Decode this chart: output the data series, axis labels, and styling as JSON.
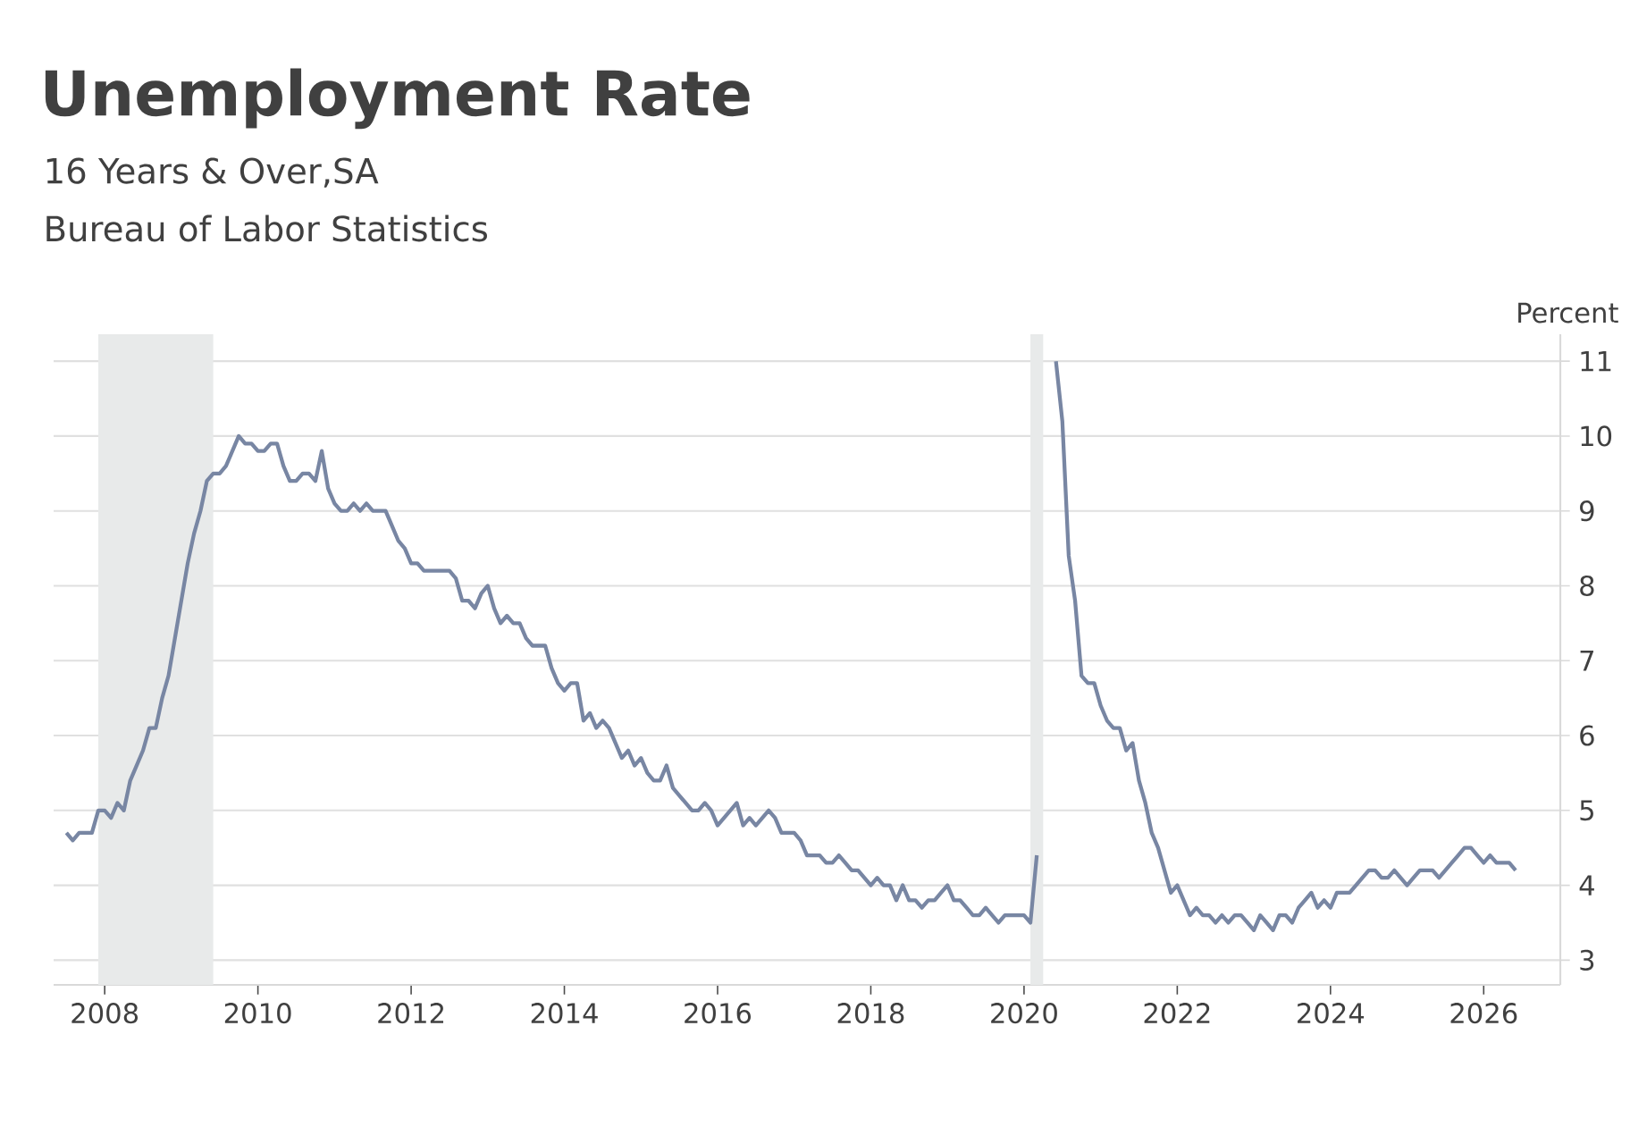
{
  "chart_data": {
    "type": "line",
    "title": "Unemployment Rate",
    "subtitle": "16 Years & Over,SA",
    "annotations": [
      "Bureau of Labor Statistics"
    ],
    "ylabel": "Percent",
    "x": [
      "2007-07",
      "2007-08",
      "2007-09",
      "2007-10",
      "2007-11",
      "2007-12",
      "2008-01",
      "2008-02",
      "2008-03",
      "2008-04",
      "2008-05",
      "2008-06",
      "2008-07",
      "2008-08",
      "2008-09",
      "2008-10",
      "2008-11",
      "2008-12",
      "2009-01",
      "2009-02",
      "2009-03",
      "2009-04",
      "2009-05",
      "2009-06",
      "2009-07",
      "2009-08",
      "2009-09",
      "2009-10",
      "2009-11",
      "2009-12",
      "2010-01",
      "2010-02",
      "2010-03",
      "2010-04",
      "2010-05",
      "2010-06",
      "2010-07",
      "2010-08",
      "2010-09",
      "2010-10",
      "2010-11",
      "2010-12",
      "2011-01",
      "2011-02",
      "2011-03",
      "2011-04",
      "2011-05",
      "2011-06",
      "2011-07",
      "2011-08",
      "2011-09",
      "2011-10",
      "2011-11",
      "2011-12",
      "2012-01",
      "2012-02",
      "2012-03",
      "2012-04",
      "2012-05",
      "2012-06",
      "2012-07",
      "2012-08",
      "2012-09",
      "2012-10",
      "2012-11",
      "2012-12",
      "2013-01",
      "2013-02",
      "2013-03",
      "2013-04",
      "2013-05",
      "2013-06",
      "2013-07",
      "2013-08",
      "2013-09",
      "2013-10",
      "2013-11",
      "2013-12",
      "2014-01",
      "2014-02",
      "2014-03",
      "2014-04",
      "2014-05",
      "2014-06",
      "2014-07",
      "2014-08",
      "2014-09",
      "2014-10",
      "2014-11",
      "2014-12",
      "2015-01",
      "2015-02",
      "2015-03",
      "2015-04",
      "2015-05",
      "2015-06",
      "2015-07",
      "2015-08",
      "2015-09",
      "2015-10",
      "2015-11",
      "2015-12",
      "2016-01",
      "2016-02",
      "2016-03",
      "2016-04",
      "2016-05",
      "2016-06",
      "2016-07",
      "2016-08",
      "2016-09",
      "2016-10",
      "2016-11",
      "2016-12",
      "2017-01",
      "2017-02",
      "2017-03",
      "2017-04",
      "2017-05",
      "2017-06",
      "2017-07",
      "2017-08",
      "2017-09",
      "2017-10",
      "2017-11",
      "2017-12",
      "2018-01",
      "2018-02",
      "2018-03",
      "2018-04",
      "2018-05",
      "2018-06",
      "2018-07",
      "2018-08",
      "2018-09",
      "2018-10",
      "2018-11",
      "2018-12",
      "2019-01",
      "2019-02",
      "2019-03",
      "2019-04",
      "2019-05",
      "2019-06",
      "2019-07",
      "2019-08",
      "2019-09",
      "2019-10",
      "2019-11",
      "2019-12",
      "2020-01",
      "2020-02",
      "2020-03",
      "2020-04",
      "2020-05",
      "2020-06",
      "2020-07",
      "2020-08",
      "2020-09",
      "2020-10",
      "2020-11",
      "2020-12",
      "2021-01",
      "2021-02",
      "2021-03",
      "2021-04",
      "2021-05",
      "2021-06",
      "2021-07",
      "2021-08",
      "2021-09",
      "2021-10",
      "2021-11",
      "2021-12",
      "2022-01",
      "2022-02",
      "2022-03",
      "2022-04",
      "2022-05",
      "2022-06",
      "2022-07",
      "2022-08",
      "2022-09",
      "2022-10",
      "2022-11",
      "2022-12",
      "2023-01",
      "2023-02",
      "2023-03",
      "2023-04",
      "2023-05",
      "2023-06",
      "2023-07",
      "2023-08",
      "2023-09",
      "2023-10",
      "2023-11",
      "2023-12",
      "2024-01",
      "2024-02",
      "2024-03",
      "2024-04",
      "2024-05",
      "2024-06",
      "2024-07",
      "2024-08",
      "2024-09",
      "2024-10",
      "2024-11",
      "2024-12",
      "2025-01",
      "2025-02",
      "2025-03",
      "2025-04",
      "2025-05",
      "2025-06",
      "2025-07",
      "2025-08",
      "2025-09",
      "2025-10",
      "2025-11",
      "2025-12",
      "2026-01",
      "2026-02",
      "2026-03",
      "2026-04",
      "2026-05",
      "2026-06"
    ],
    "series": [
      {
        "color": "#7886a3",
        "values": [
          4.7,
          4.6,
          4.7,
          4.7,
          4.7,
          5.0,
          5.0,
          4.9,
          5.1,
          5.0,
          5.4,
          5.6,
          5.8,
          6.1,
          6.1,
          6.5,
          6.8,
          7.3,
          7.8,
          8.3,
          8.7,
          9.0,
          9.4,
          9.5,
          9.5,
          9.6,
          9.8,
          10.0,
          9.9,
          9.9,
          9.8,
          9.8,
          9.9,
          9.9,
          9.6,
          9.4,
          9.4,
          9.5,
          9.5,
          9.4,
          9.8,
          9.3,
          9.1,
          9.0,
          9.0,
          9.1,
          9.0,
          9.1,
          9.0,
          9.0,
          9.0,
          8.8,
          8.6,
          8.5,
          8.3,
          8.3,
          8.2,
          8.2,
          8.2,
          8.2,
          8.2,
          8.1,
          7.8,
          7.8,
          7.7,
          7.9,
          8.0,
          7.7,
          7.5,
          7.6,
          7.5,
          7.5,
          7.3,
          7.2,
          7.2,
          7.2,
          6.9,
          6.7,
          6.6,
          6.7,
          6.7,
          6.2,
          6.3,
          6.1,
          6.2,
          6.1,
          5.9,
          5.7,
          5.8,
          5.6,
          5.7,
          5.5,
          5.4,
          5.4,
          5.6,
          5.3,
          5.2,
          5.1,
          5.0,
          5.0,
          5.1,
          5.0,
          4.8,
          4.9,
          5.0,
          5.1,
          4.8,
          4.9,
          4.8,
          4.9,
          5.0,
          4.9,
          4.7,
          4.7,
          4.7,
          4.6,
          4.4,
          4.4,
          4.4,
          4.3,
          4.3,
          4.4,
          4.3,
          4.2,
          4.2,
          4.1,
          4.0,
          4.1,
          4.0,
          4.0,
          3.8,
          4.0,
          3.8,
          3.8,
          3.7,
          3.8,
          3.8,
          3.9,
          4.0,
          3.8,
          3.8,
          3.7,
          3.6,
          3.6,
          3.7,
          3.6,
          3.5,
          3.6,
          3.6,
          3.6,
          3.6,
          3.5,
          4.4,
          null,
          null,
          11.0,
          10.2,
          8.4,
          7.8,
          6.8,
          6.7,
          6.7,
          6.4,
          6.2,
          6.1,
          6.1,
          5.8,
          5.9,
          5.4,
          5.1,
          4.7,
          4.5,
          4.2,
          3.9,
          4.0,
          3.8,
          3.6,
          3.7,
          3.6,
          3.6,
          3.5,
          3.6,
          3.5,
          3.6,
          3.6,
          3.5,
          3.4,
          3.6,
          3.5,
          3.4,
          3.6,
          3.6,
          3.5,
          3.7,
          3.8,
          3.9,
          3.7,
          3.8,
          3.7,
          3.9,
          3.9,
          3.9,
          4.0,
          4.1,
          4.2,
          4.2,
          4.1,
          4.1,
          4.2,
          4.1,
          4.0,
          4.1,
          4.2,
          4.2,
          4.2,
          4.1,
          4.2,
          4.3,
          4.4,
          4.5,
          4.5,
          4.4,
          4.3,
          4.4,
          4.3,
          4.3,
          4.3,
          4.2
        ]
      }
    ],
    "xlim": [
      "2007-05",
      "2027-01"
    ],
    "xticks": [
      "2008",
      "2010",
      "2012",
      "2014",
      "2016",
      "2018",
      "2020",
      "2022",
      "2024",
      "2026"
    ],
    "ylim": [
      2.67,
      11.36
    ],
    "yticks": [
      3,
      4,
      5,
      6,
      7,
      8,
      9,
      10,
      11
    ],
    "grid": "y",
    "bands": [
      {
        "axis": "x",
        "from": "2007-12",
        "to": "2009-06",
        "color": "#e8eaea"
      },
      {
        "axis": "x",
        "from": "2020-02",
        "to": "2020-04",
        "color": "#e8eaea"
      }
    ]
  }
}
